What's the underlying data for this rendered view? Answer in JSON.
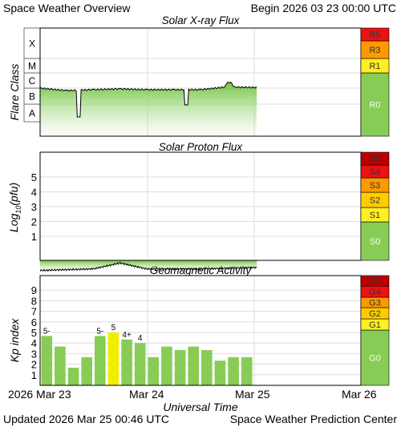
{
  "header": {
    "title": "Space Weather Overview",
    "begin": "Begin 2026 03 23 00:00 UTC"
  },
  "footer": {
    "updated": "Updated 2026 Mar 25 00:46 UTC",
    "center": "Space Weather Prediction Center"
  },
  "x_axis": {
    "title": "Universal Time",
    "ticks": [
      "2026 Mar 23",
      "Mar 24",
      "Mar 25",
      "Mar 26"
    ]
  },
  "colors": {
    "green": "#88cc55",
    "yellow": "#ffee22",
    "orange_light": "#ffcc00",
    "orange": "#ff9900",
    "red": "#ee1111",
    "dark_red": "#bb0000",
    "grid": "#dddddd",
    "kp_yellow": "#eeee00"
  },
  "chart_data": [
    {
      "type": "line",
      "title": "Solar X-ray Flux",
      "ylabel": "Flare Class",
      "y_categories": [
        "A",
        "B",
        "C",
        "M",
        "X"
      ],
      "x": [
        "2026-03-23 00:00",
        "2026-03-23 06:00",
        "2026-03-23 12:00",
        "2026-03-23 18:00",
        "2026-03-24 00:00",
        "2026-03-24 06:00",
        "2026-03-24 12:00",
        "2026-03-24 18:00",
        "2026-03-25 00:46"
      ],
      "series": [
        {
          "values": [
            "C1.0",
            "B7",
            "B8",
            "B9",
            "B8",
            "B8",
            "B8",
            "C1.2",
            "C1.1"
          ]
        }
      ],
      "scale_bands": [
        {
          "label": "R0",
          "color": "#88cc55"
        },
        {
          "label": "R1",
          "color": "#ffee22"
        },
        {
          "label": "R3",
          "color": "#ff9900"
        },
        {
          "label": "R5",
          "color": "#ee1111"
        }
      ]
    },
    {
      "type": "line",
      "title": "Solar Proton Flux",
      "ylabel": "Log10(pfu)",
      "ylabel_main": "Log",
      "ylabel_sub": "10",
      "ylabel_paren": "(pfu)",
      "y_ticks": [
        1,
        2,
        3,
        4,
        5
      ],
      "x": [
        "2026-03-23 00:00",
        "2026-03-23 12:00",
        "2026-03-23 18:00",
        "2026-03-24 00:00",
        "2026-03-24 12:00",
        "2026-03-25 00:46"
      ],
      "series": [
        {
          "values": [
            -1.3,
            -1.2,
            -0.8,
            -1.2,
            -1.2,
            -1.1
          ]
        }
      ],
      "scale_bands": [
        {
          "label": "S0",
          "color": "#88cc55"
        },
        {
          "label": "S1",
          "color": "#ffee22"
        },
        {
          "label": "S2",
          "color": "#ffcc00"
        },
        {
          "label": "S3",
          "color": "#ff9900"
        },
        {
          "label": "S4",
          "color": "#ee1111"
        },
        {
          "label": "S5",
          "color": "#bb0000"
        }
      ]
    },
    {
      "type": "bar",
      "title": "Geomagnetic Activity",
      "ylabel": "Kp index",
      "y_ticks": [
        1,
        2,
        3,
        4,
        5,
        6,
        7,
        8,
        9
      ],
      "ylim": [
        0,
        9.9
      ],
      "categories": [
        "Mar 23 00",
        "Mar 23 03",
        "Mar 23 06",
        "Mar 23 09",
        "Mar 23 12",
        "Mar 23 15",
        "Mar 23 18",
        "Mar 23 21",
        "Mar 24 00",
        "Mar 24 03",
        "Mar 24 06",
        "Mar 24 09",
        "Mar 24 12",
        "Mar 24 15",
        "Mar 24 18",
        "Mar 24 21"
      ],
      "values": [
        4.67,
        3.67,
        1.67,
        2.67,
        4.67,
        5.0,
        4.33,
        4.0,
        2.67,
        3.67,
        3.33,
        3.67,
        3.33,
        2.33,
        2.67,
        2.67
      ],
      "bar_labels": [
        "5-",
        "",
        "",
        "",
        "5-",
        "5",
        "4+",
        "4",
        "",
        "",
        "",
        "",
        "",
        "",
        "",
        ""
      ],
      "scale_bands": [
        {
          "label": "G0",
          "color": "#88cc55"
        },
        {
          "label": "G1",
          "color": "#ffee22"
        },
        {
          "label": "G2",
          "color": "#ffcc00"
        },
        {
          "label": "G3",
          "color": "#ff9900"
        },
        {
          "label": "G4",
          "color": "#ee1111"
        },
        {
          "label": "G5",
          "color": "#bb0000"
        }
      ]
    }
  ]
}
